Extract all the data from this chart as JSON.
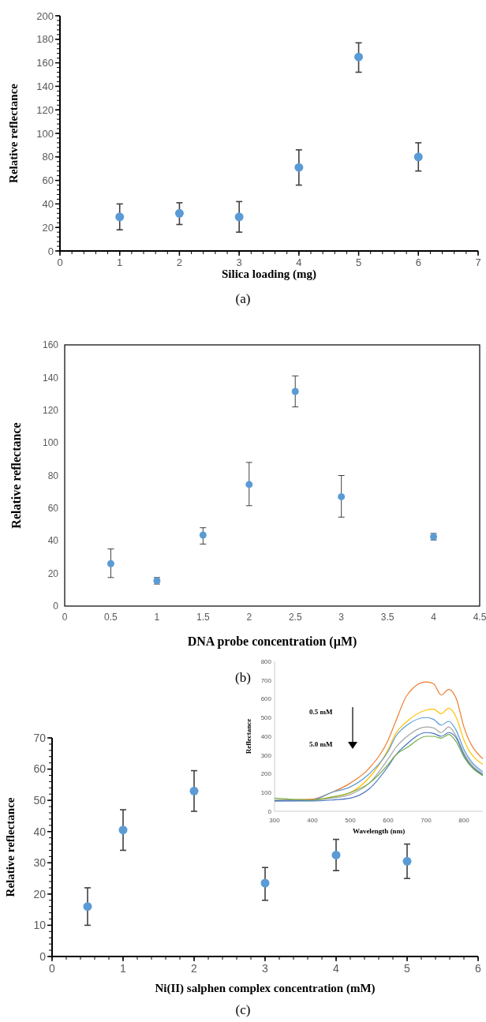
{
  "chart_data": [
    {
      "type": "scatter",
      "xlabel": "Silica loading (mg)",
      "ylabel": "Relative reflectance",
      "annotations": [
        "(a)"
      ],
      "x": [
        1,
        2,
        3,
        4,
        5,
        6
      ],
      "values": [
        29,
        32,
        29,
        71,
        165,
        80
      ],
      "errors": [
        [
          18,
          40
        ],
        [
          22.5,
          41
        ],
        [
          16,
          42
        ],
        [
          56,
          86
        ],
        [
          152,
          177
        ],
        [
          68,
          92
        ]
      ],
      "color": "#5b9bd5",
      "marker": "circle",
      "xlim": [
        0,
        7
      ],
      "xticks": [
        0,
        1,
        2,
        3,
        4,
        5,
        6,
        7
      ],
      "ylim": [
        0,
        200
      ],
      "yticks": [
        0,
        20,
        40,
        60,
        80,
        100,
        120,
        140,
        160,
        180,
        200
      ]
    },
    {
      "type": "scatter",
      "xlabel": "DNA probe concentration (µM)",
      "ylabel": "Relative reflectance",
      "annotations": [
        "(b)"
      ],
      "x": [
        0.5,
        1,
        1.5,
        2,
        2.5,
        3,
        4
      ],
      "values": [
        26,
        15.5,
        43.5,
        74.5,
        131.5,
        67,
        42.5
      ],
      "errors": [
        [
          17.5,
          35
        ],
        [
          13.5,
          17.5
        ],
        [
          38,
          48
        ],
        [
          61.5,
          88
        ],
        [
          122,
          141
        ],
        [
          54.5,
          80
        ],
        [
          40.5,
          44.5
        ]
      ],
      "color": "#5b9bd5",
      "marker": "circle",
      "xlim": [
        0,
        4.5
      ],
      "xticks": [
        0,
        0.5,
        1,
        1.5,
        2,
        2.5,
        3,
        3.5,
        4,
        4.5
      ],
      "ylim": [
        0,
        160
      ],
      "yticks": [
        0,
        20,
        40,
        60,
        80,
        100,
        120,
        140,
        160
      ]
    },
    {
      "type": "scatter",
      "xlabel": "Ni(II) salphen complex concentration (mM)",
      "ylabel": "Relative reflectance",
      "annotations": [
        "(c)"
      ],
      "x": [
        0.5,
        1,
        2,
        3,
        4,
        5
      ],
      "values": [
        16,
        40.5,
        53,
        23.5,
        32.5,
        30.5
      ],
      "errors": [
        [
          10,
          22
        ],
        [
          34,
          47
        ],
        [
          46.5,
          59.5
        ],
        [
          18,
          28.5
        ],
        [
          27.5,
          37.5
        ],
        [
          25,
          36
        ]
      ],
      "color": "#5b9bd5",
      "marker": "circle",
      "xlim": [
        0,
        6
      ],
      "xticks": [
        0,
        1,
        2,
        3,
        4,
        5,
        6
      ],
      "ylim": [
        0,
        70
      ],
      "yticks": [
        0,
        10,
        20,
        30,
        40,
        50,
        60,
        70
      ]
    },
    {
      "type": "line",
      "xlabel": "Wavelength (nm)",
      "ylabel": "Reflectance",
      "annotations": [
        "0.5 mM",
        "5.0 mM"
      ],
      "x": [
        300,
        400,
        450,
        500,
        550,
        600,
        620,
        650,
        700,
        720,
        740,
        760,
        780,
        800,
        850
      ],
      "marker": "none",
      "xlim": [
        300,
        850
      ],
      "xticks": [
        300,
        400,
        500,
        600,
        700,
        800
      ],
      "ylim": [
        0,
        800
      ],
      "yticks": [
        0,
        100,
        200,
        300,
        400,
        500,
        600,
        700,
        800
      ],
      "series": [
        {
          "color": "#ed7d31",
          "values": [
            60,
            65,
            100,
            150,
            230,
            380,
            480,
            620,
            690,
            680,
            620,
            650,
            600,
            450,
            280
          ]
        },
        {
          "color": "#ffc000",
          "values": [
            null,
            60,
            75,
            100,
            180,
            330,
            415,
            480,
            540,
            545,
            520,
            550,
            500,
            380,
            250
          ]
        },
        {
          "color": "#5b9bd5",
          "values": [
            55,
            60,
            100,
            130,
            200,
            320,
            400,
            460,
            500,
            490,
            460,
            480,
            430,
            330,
            210
          ]
        },
        {
          "color": "#a5a5a5",
          "values": [
            60,
            60,
            70,
            90,
            150,
            280,
            340,
            400,
            450,
            445,
            420,
            450,
            400,
            310,
            200
          ]
        },
        {
          "color": "#4472c4",
          "values": [
            55,
            55,
            60,
            70,
            120,
            240,
            300,
            360,
            420,
            415,
            400,
            420,
            390,
            300,
            195
          ]
        },
        {
          "color": "#70ad47",
          "values": [
            70,
            60,
            75,
            100,
            150,
            250,
            300,
            340,
            400,
            400,
            390,
            410,
            370,
            290,
            190
          ]
        }
      ]
    }
  ]
}
